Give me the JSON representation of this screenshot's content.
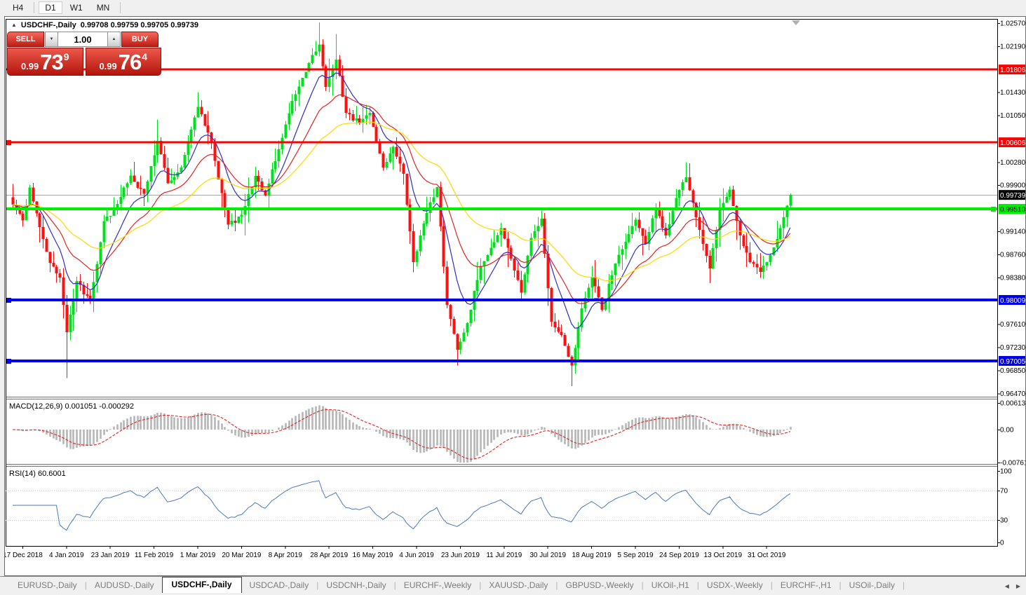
{
  "toolbar": {
    "timeframes": [
      {
        "label": "H4",
        "active": false
      },
      {
        "label": "D1",
        "active": true
      },
      {
        "label": "W1",
        "active": false
      },
      {
        "label": "MN",
        "active": false
      }
    ]
  },
  "chart": {
    "title": {
      "symbol": "USDCHF-,Daily",
      "ohlc": "0.99708 0.99759 0.99705 0.99739"
    },
    "one_click": {
      "sell_label": "SELL",
      "buy_label": "BUY",
      "volume": "1.00",
      "sell_price": {
        "prefix": "0.99",
        "big": "73",
        "sup": "9"
      },
      "buy_price": {
        "prefix": "0.99",
        "big": "76",
        "sup": "4"
      }
    }
  },
  "chart_data": {
    "type": "candlestick",
    "symbol": "USDCHF-",
    "timeframe": "Daily",
    "ohlc_display": {
      "open": "0.99708",
      "high": "0.99759",
      "low": "0.99705",
      "close": "0.99739"
    },
    "bars": 232,
    "price_axis": {
      "tick_labels": [
        "1.02570",
        "1.02190",
        "1.01430",
        "1.01050",
        "1.00280",
        "0.99900",
        "0.99140",
        "0.98760",
        "0.98380",
        "0.97610",
        "0.97230",
        "0.96850",
        "0.96470"
      ]
    },
    "date_axis": [
      "17 Dec 2018",
      "4 Jan 2019",
      "23 Jan 2019",
      "11 Feb 2019",
      "1 Mar 2019",
      "20 Mar 2019",
      "8 Apr 2019",
      "28 Apr 2019",
      "16 May 2019",
      "4 Jun 2019",
      "23 Jun 2019",
      "11 Jul 2019",
      "30 Jul 2019",
      "18 Aug 2019",
      "5 Sep 2019",
      "24 Sep 2019",
      "13 Oct 2019",
      "31 Oct 2019"
    ],
    "horizontal_lines": [
      {
        "price": 1.01806,
        "label": "1.01806",
        "color": "#ff0000",
        "width": 3,
        "handle": null,
        "label_text_color": "#ffffff"
      },
      {
        "price": 1.00606,
        "label": "1.00606",
        "color": "#ff0000",
        "width": 3,
        "handle": "left",
        "label_text_color": "#ffffff"
      },
      {
        "price": 0.9951,
        "label": "0.99510",
        "color": "#00ee00",
        "width": 4,
        "handle": "right",
        "label_text_color": "#000000"
      },
      {
        "price": 0.98009,
        "label": "0.98009",
        "color": "#0000ee",
        "width": 4,
        "handle": "left",
        "label_text_color": "#ffffff"
      },
      {
        "price": 0.97005,
        "label": "0.97005",
        "color": "#0000ee",
        "width": 4,
        "handle": "left",
        "label_text_color": "#ffffff"
      }
    ],
    "current_price_line": {
      "price": 0.99739,
      "label": "0.99739",
      "line_color": "#a8a8a8",
      "badge_color": "#000000",
      "label_text_color": "#ffffff"
    },
    "candle_colors": {
      "up": "#00df1e",
      "down": "#ff1010"
    },
    "moving_averages": [
      {
        "period": 10,
        "color": "#2d2dcc"
      },
      {
        "period": 22,
        "color": "#e32222"
      },
      {
        "period": 45,
        "color": "#ffd900"
      }
    ],
    "macd": {
      "label": "MACD(12,26,9)",
      "display_values": "0.001051 -0.000292",
      "fast": 12,
      "slow": 26,
      "signal": 9,
      "histogram_color": "#b6b6b6",
      "signal_color": "#e32222",
      "axis_ticks": [
        {
          "v": 0.00613,
          "label": "0.00613"
        },
        {
          "v": 0,
          "label": "0.00"
        },
        {
          "v": -0.007612,
          "label": "-0.007612"
        }
      ]
    },
    "rsi": {
      "label": "RSI(14)",
      "display_value": "60.6001",
      "period": 14,
      "color": "#4a79b8",
      "level_color": "#c0c0c0",
      "levels": [
        70,
        30
      ],
      "axis_ticks": [
        {
          "v": 100,
          "label": "100"
        },
        {
          "v": 70,
          "label": "70"
        },
        {
          "v": 30,
          "label": "30"
        },
        {
          "v": 0,
          "label": "0"
        }
      ]
    },
    "price_keypoints": [
      {
        "i": 0,
        "c": 0.9958
      },
      {
        "i": 3,
        "c": 0.9932
      },
      {
        "i": 5,
        "c": 0.9986
      },
      {
        "i": 8,
        "c": 0.9921
      },
      {
        "i": 11,
        "c": 0.9862
      },
      {
        "i": 14,
        "c": 0.9838
      },
      {
        "i": 16,
        "c": 0.9748,
        "lo": 0.9672
      },
      {
        "i": 19,
        "c": 0.9832
      },
      {
        "i": 23,
        "c": 0.9799
      },
      {
        "i": 27,
        "c": 0.9931
      },
      {
        "i": 31,
        "c": 0.9959
      },
      {
        "i": 35,
        "c": 1.0006
      },
      {
        "i": 39,
        "c": 0.9976
      },
      {
        "i": 43,
        "c": 1.0063,
        "hi": 1.0098
      },
      {
        "i": 46,
        "c": 0.9993
      },
      {
        "i": 50,
        "c": 1.0019
      },
      {
        "i": 55,
        "c": 1.0119,
        "hi": 1.0143
      },
      {
        "i": 59,
        "c": 1.0059
      },
      {
        "i": 64,
        "c": 0.9925
      },
      {
        "i": 68,
        "c": 0.9941
      },
      {
        "i": 72,
        "c": 1.0005
      },
      {
        "i": 75,
        "c": 0.9973
      },
      {
        "i": 79,
        "c": 1.0049
      },
      {
        "i": 83,
        "c": 1.0129
      },
      {
        "i": 87,
        "c": 1.0177
      },
      {
        "i": 91,
        "c": 1.0222,
        "hi": 1.0258
      },
      {
        "i": 93,
        "c": 1.0152
      },
      {
        "i": 96,
        "c": 1.0197,
        "hi": 1.0239
      },
      {
        "i": 99,
        "c": 1.0109
      },
      {
        "i": 103,
        "c": 1.0093
      },
      {
        "i": 106,
        "c": 1.0109
      },
      {
        "i": 110,
        "c": 1.0019
      },
      {
        "i": 113,
        "c": 1.0053
      },
      {
        "i": 116,
        "c": 1.0009
      },
      {
        "i": 119,
        "c": 0.9863
      },
      {
        "i": 122,
        "c": 0.9927
      },
      {
        "i": 126,
        "c": 0.9987
      },
      {
        "i": 129,
        "c": 0.9793
      },
      {
        "i": 132,
        "c": 0.9719,
        "lo": 0.9693
      },
      {
        "i": 135,
        "c": 0.9763
      },
      {
        "i": 139,
        "c": 0.9857
      },
      {
        "i": 142,
        "c": 0.9887
      },
      {
        "i": 145,
        "c": 0.9919
      },
      {
        "i": 148,
        "c": 0.9869
      },
      {
        "i": 151,
        "c": 0.9813
      },
      {
        "i": 154,
        "c": 0.9903
      },
      {
        "i": 157,
        "c": 0.9935
      },
      {
        "i": 160,
        "c": 0.9765
      },
      {
        "i": 163,
        "c": 0.9743
      },
      {
        "i": 166,
        "c": 0.9693,
        "lo": 0.9659
      },
      {
        "i": 169,
        "c": 0.9787
      },
      {
        "i": 172,
        "c": 0.9839
      },
      {
        "i": 175,
        "c": 0.9785
      },
      {
        "i": 179,
        "c": 0.9861
      },
      {
        "i": 182,
        "c": 0.9897
      },
      {
        "i": 185,
        "c": 0.9933
      },
      {
        "i": 188,
        "c": 0.9893
      },
      {
        "i": 191,
        "c": 0.9953
      },
      {
        "i": 194,
        "c": 0.9907
      },
      {
        "i": 197,
        "c": 0.9969
      },
      {
        "i": 200,
        "c": 1.0003,
        "hi": 1.0028
      },
      {
        "i": 203,
        "c": 0.9937
      },
      {
        "i": 207,
        "c": 0.9853
      },
      {
        "i": 210,
        "c": 0.9949
      },
      {
        "i": 213,
        "c": 0.9983
      },
      {
        "i": 216,
        "c": 0.9907
      },
      {
        "i": 219,
        "c": 0.9863
      },
      {
        "i": 222,
        "c": 0.9847,
        "lo": 0.9837
      },
      {
        "i": 225,
        "c": 0.9875
      },
      {
        "i": 228,
        "c": 0.9919
      },
      {
        "i": 231,
        "c": 0.99739
      }
    ]
  },
  "tabs": {
    "items": [
      {
        "label": "EURUSD-,Daily",
        "active": false
      },
      {
        "label": "AUDUSD-,Daily",
        "active": false
      },
      {
        "label": "USDCHF-,Daily",
        "active": true
      },
      {
        "label": "USDCAD-,Daily",
        "active": false
      },
      {
        "label": "USDCNH-,Daily",
        "active": false
      },
      {
        "label": "EURCHF-,Weekly",
        "active": false
      },
      {
        "label": "XAUUSD-,Daily",
        "active": false
      },
      {
        "label": "GBPUSD-,Weekly",
        "active": false
      },
      {
        "label": "UKOil-,H1",
        "active": false
      },
      {
        "label": "USDX-,Weekly",
        "active": false
      },
      {
        "label": "EURCHF-,H1",
        "active": false
      },
      {
        "label": "USOil-,Daily",
        "active": false
      }
    ],
    "scroll_left": "◀",
    "scroll_right": "▶"
  }
}
